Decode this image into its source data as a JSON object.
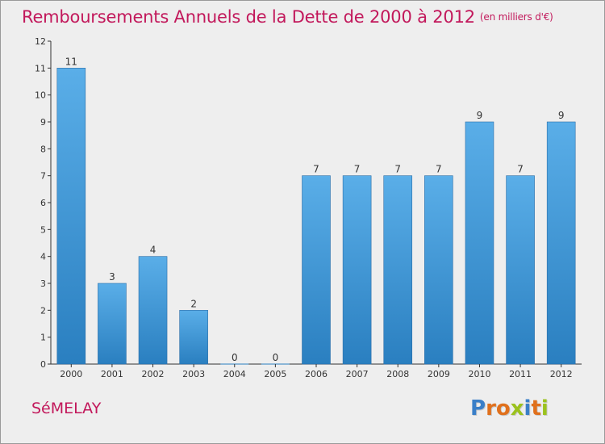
{
  "chart_data": {
    "type": "bar",
    "title": "Remboursements Annuels de la Dette de 2000 à 2012",
    "unit_note": "(en milliers d'€)",
    "categories": [
      "2000",
      "2001",
      "2002",
      "2003",
      "2004",
      "2005",
      "2006",
      "2007",
      "2008",
      "2009",
      "2010",
      "2011",
      "2012"
    ],
    "values": [
      11,
      3,
      4,
      2,
      0,
      0,
      7,
      7,
      7,
      7,
      9,
      7,
      9
    ],
    "ylim": [
      0,
      12
    ],
    "yticks": [
      0,
      1,
      2,
      3,
      4,
      5,
      6,
      7,
      8,
      9,
      10,
      11,
      12
    ],
    "grid": false,
    "bar_color_top": "#5aaee8",
    "bar_color_bottom": "#2a7fc0"
  },
  "footer": {
    "commune": "SéMELAY",
    "logo_letters": [
      "P",
      "r",
      "o",
      "x",
      "i",
      "t",
      "i"
    ],
    "logo_colors": [
      "#3a7fc8",
      "#e0701c",
      "#e0701c",
      "#9bc21e",
      "#3a7fc8",
      "#e0701c",
      "#9bc21e"
    ]
  },
  "colors": {
    "title": "#c2185b",
    "background": "#eeeeee",
    "axis": "#333333"
  }
}
